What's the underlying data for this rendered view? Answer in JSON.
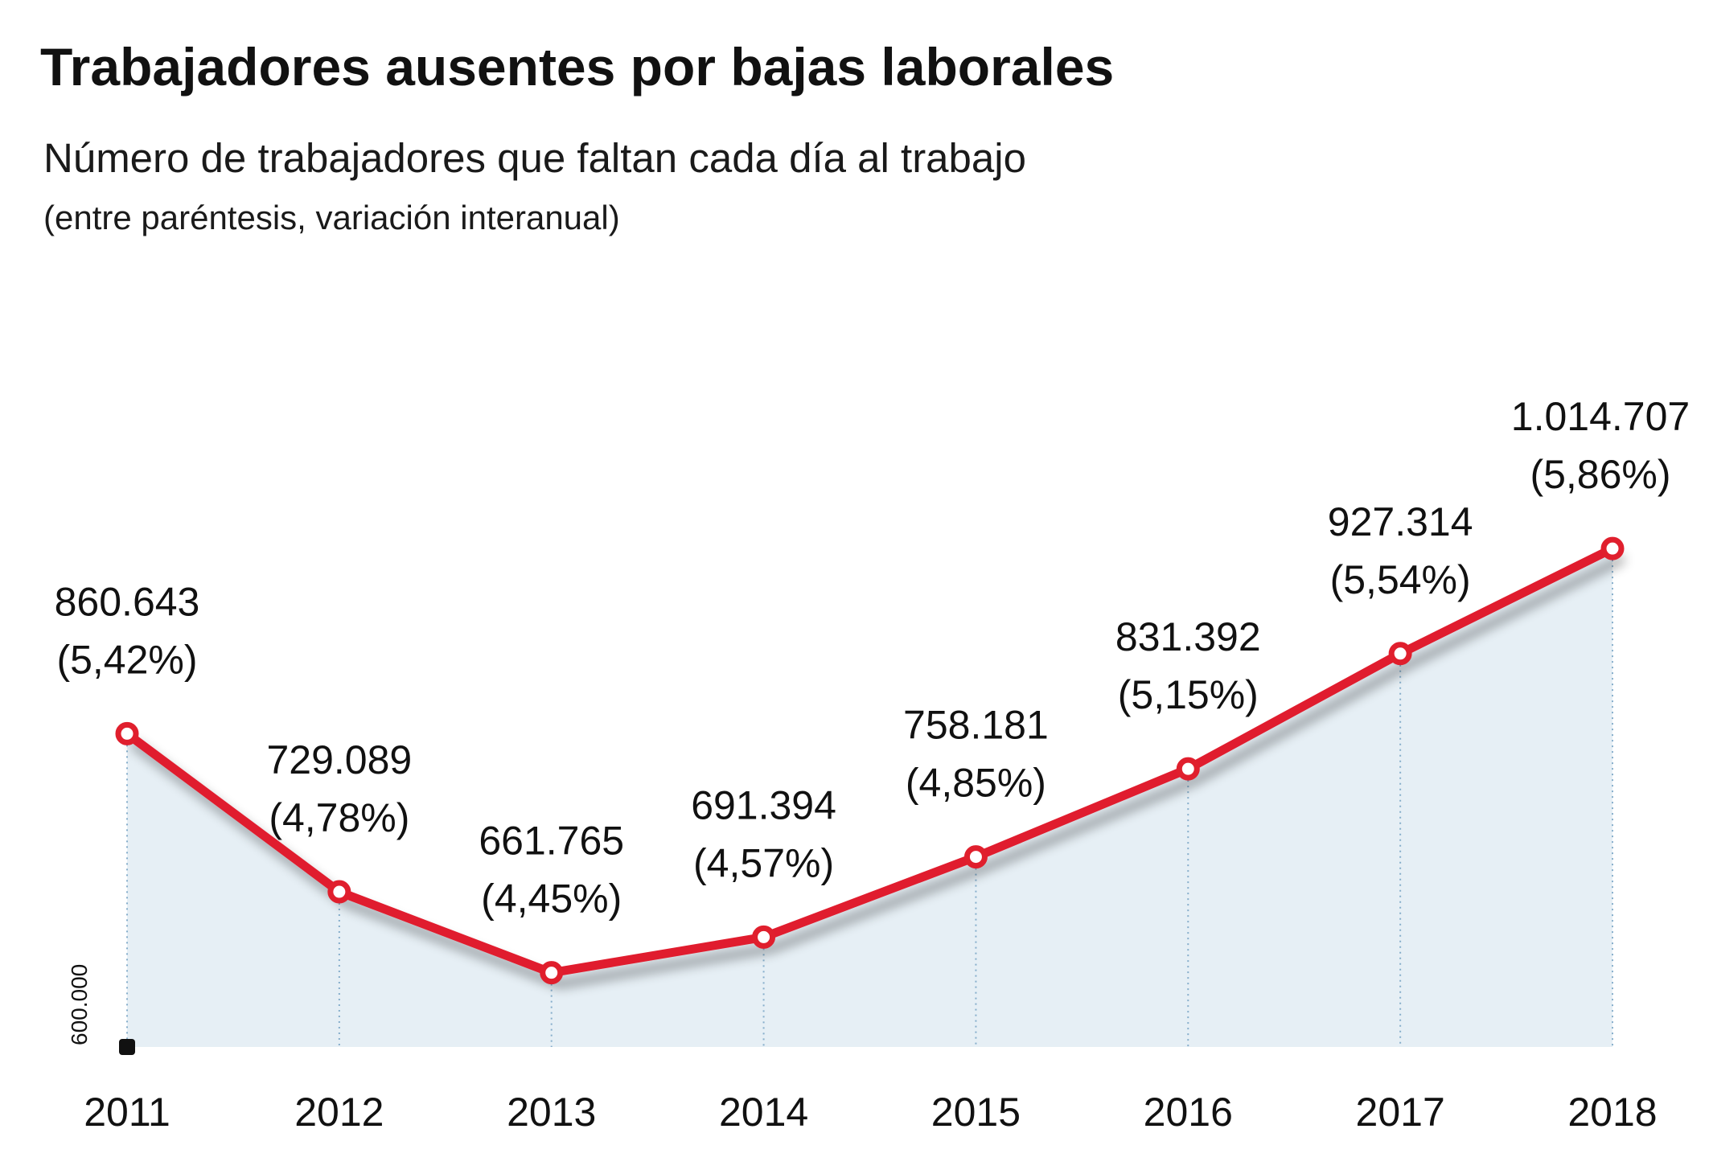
{
  "chart_data": {
    "type": "line",
    "title": "Trabajadores ausentes por bajas laborales",
    "subtitle": "Número de trabajadores que faltan cada día al trabajo",
    "note": "(entre paréntesis, variación interanual)",
    "categories": [
      "2011",
      "2012",
      "2013",
      "2014",
      "2015",
      "2016",
      "2017",
      "2018"
    ],
    "values": [
      860643,
      729089,
      661765,
      691394,
      758181,
      831392,
      927314,
      1014707
    ],
    "value_labels": [
      "860.643",
      "729.089",
      "661.765",
      "691.394",
      "758.181",
      "831.392",
      "927.314",
      "1.014.707"
    ],
    "pct_labels": [
      "(5,42%)",
      "(4,78%)",
      "(4,45%)",
      "(4,57%)",
      "(4,85%)",
      "(5,15%)",
      "(5,54%)",
      "(5,86%)"
    ],
    "ymin_label": "600.000",
    "ylim": [
      600000,
      1014707
    ],
    "grid": false,
    "legend": "none",
    "colors": {
      "line": "#e01f2d",
      "area": "#e6eff5",
      "guide": "#86aecb",
      "marker_fill": "#ffffff"
    }
  }
}
